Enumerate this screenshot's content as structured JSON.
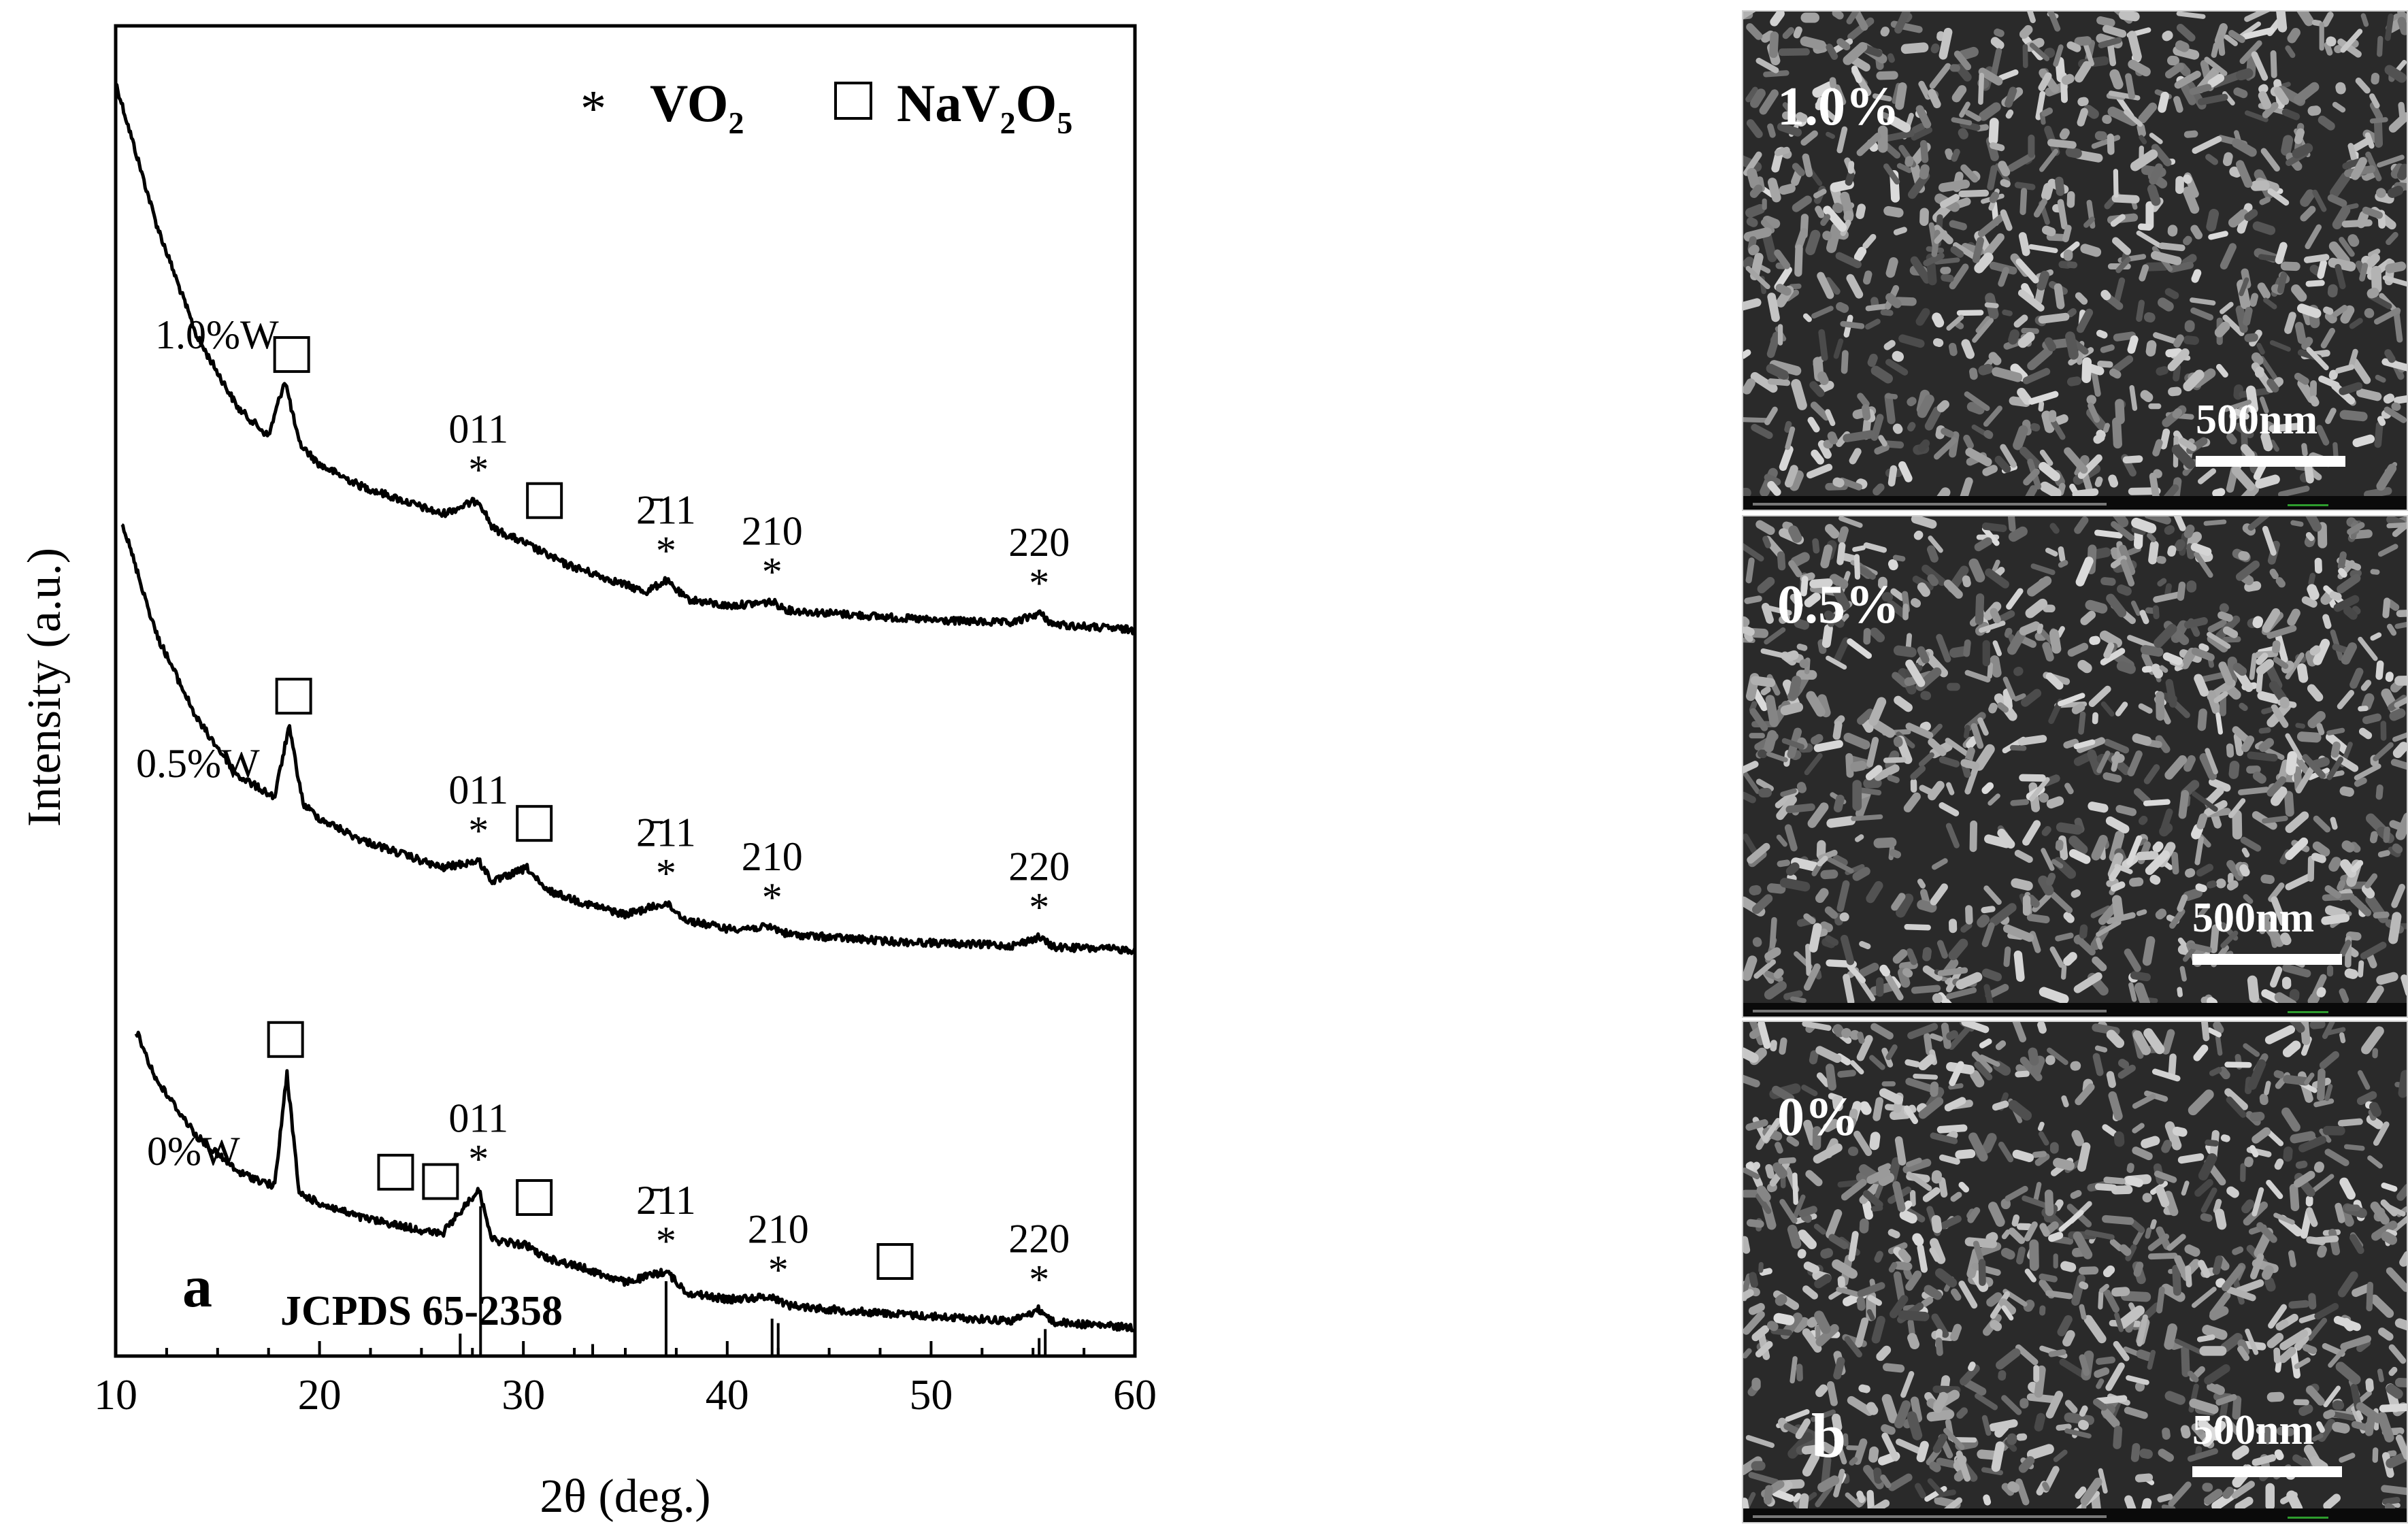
{
  "chart_data": {
    "type": "line",
    "panel_label": "a",
    "xlabel": "2θ (deg.)",
    "ylabel": "Intensity (a.u.)",
    "xlim": [
      10,
      60
    ],
    "xticks": [
      10,
      20,
      30,
      40,
      50,
      60
    ],
    "legend": [
      {
        "symbol": "*",
        "label": "VO",
        "sub": "2",
        "label2": "",
        "sub2": ""
      },
      {
        "symbol": "□",
        "label": "NaV",
        "sub": "2",
        "label2": "O",
        "sub2": "5"
      }
    ],
    "reference": {
      "label": "JCPDS 65-2358",
      "lines": [
        {
          "x": 26.9,
          "h": 0.15
        },
        {
          "x": 27.9,
          "h": 1.0
        },
        {
          "x": 33.4,
          "h": 0.08
        },
        {
          "x": 37.0,
          "h": 0.5
        },
        {
          "x": 42.2,
          "h": 0.25
        },
        {
          "x": 42.5,
          "h": 0.22
        },
        {
          "x": 55.3,
          "h": 0.12
        },
        {
          "x": 55.6,
          "h": 0.18
        }
      ]
    },
    "series": [
      {
        "name": "1.0%W",
        "x": [
          10,
          12,
          14,
          16,
          17.5,
          18.3,
          19,
          20,
          22,
          24,
          26,
          27.8,
          28.5,
          30,
          32,
          34,
          36,
          37,
          38,
          40,
          42.2,
          43,
          45,
          48,
          50,
          54,
          55.3,
          56,
          58,
          60
        ],
        "y": [
          9.0,
          8.0,
          7.2,
          6.7,
          6.5,
          6.9,
          6.45,
          6.3,
          6.15,
          6.05,
          5.95,
          6.05,
          5.85,
          5.75,
          5.6,
          5.5,
          5.4,
          5.48,
          5.35,
          5.3,
          5.33,
          5.27,
          5.25,
          5.22,
          5.2,
          5.18,
          5.25,
          5.17,
          5.15,
          5.13
        ],
        "peaks": [
          {
            "x": 18.6,
            "sym": "□",
            "hkl": ""
          },
          {
            "x": 27.8,
            "sym": "*",
            "hkl": "011"
          },
          {
            "x": 31.0,
            "sym": "□",
            "hkl": ""
          },
          {
            "x": 37.0,
            "sym": "*",
            "hkl": "2̄11"
          },
          {
            "x": 42.2,
            "sym": "*",
            "hkl": "210"
          },
          {
            "x": 55.3,
            "sym": "*",
            "hkl": "220"
          }
        ]
      },
      {
        "name": "0.5%W",
        "x": [
          10.3,
          12,
          14,
          16,
          17.8,
          18.5,
          19.2,
          20,
          22,
          24,
          26,
          27.8,
          28.5,
          30.2,
          31,
          33,
          35,
          37,
          38,
          40,
          42.2,
          43,
          45,
          48,
          50,
          54,
          55.3,
          56,
          58,
          60
        ],
        "y": [
          5.9,
          5.1,
          4.5,
          4.1,
          3.95,
          4.45,
          3.9,
          3.8,
          3.65,
          3.55,
          3.45,
          3.5,
          3.35,
          3.45,
          3.3,
          3.2,
          3.12,
          3.2,
          3.08,
          3.02,
          3.03,
          2.98,
          2.96,
          2.93,
          2.92,
          2.9,
          2.96,
          2.89,
          2.88,
          2.87
        ],
        "peaks": [
          {
            "x": 18.7,
            "sym": "□",
            "hkl": ""
          },
          {
            "x": 27.8,
            "sym": "*",
            "hkl": "011"
          },
          {
            "x": 30.5,
            "sym": "□",
            "hkl": ""
          },
          {
            "x": 37.0,
            "sym": "*",
            "hkl": "2̄11"
          },
          {
            "x": 42.2,
            "sym": "*",
            "hkl": "210"
          },
          {
            "x": 55.3,
            "sym": "*",
            "hkl": "220"
          }
        ]
      },
      {
        "name": "0%W",
        "x": [
          11,
          12,
          14,
          16,
          17.8,
          18.4,
          19,
          20,
          22,
          24,
          26,
          27.8,
          28.5,
          30.2,
          31,
          33,
          35,
          37,
          38,
          40,
          42.2,
          43,
          45,
          48,
          50,
          54,
          55.3,
          56,
          58,
          60
        ],
        "y": [
          2.3,
          1.95,
          1.55,
          1.3,
          1.2,
          2.0,
          1.15,
          1.08,
          0.98,
          0.92,
          0.86,
          1.18,
          0.82,
          0.78,
          0.7,
          0.62,
          0.52,
          0.6,
          0.45,
          0.4,
          0.42,
          0.36,
          0.33,
          0.3,
          0.28,
          0.25,
          0.33,
          0.24,
          0.22,
          0.2
        ],
        "peaks": [
          {
            "x": 18.3,
            "sym": "□",
            "hkl": ""
          },
          {
            "x": 23.7,
            "sym": "□",
            "hkl": ""
          },
          {
            "x": 25.9,
            "sym": "□",
            "hkl": ""
          },
          {
            "x": 27.8,
            "sym": "*",
            "hkl": "011"
          },
          {
            "x": 30.5,
            "sym": "□",
            "hkl": ""
          },
          {
            "x": 37.0,
            "sym": "*",
            "hkl": "2̄11"
          },
          {
            "x": 42.5,
            "sym": "*",
            "hkl": "210"
          },
          {
            "x": 48.2,
            "sym": "□",
            "hkl": ""
          },
          {
            "x": 55.3,
            "sym": "*",
            "hkl": "220"
          }
        ]
      }
    ]
  },
  "sem": {
    "panel_label": "b",
    "scale_label": "500nm",
    "panels": [
      {
        "label": "1.0%",
        "seed": 7
      },
      {
        "label": "0.5%",
        "seed": 19
      },
      {
        "label": "0%",
        "seed": 31
      }
    ]
  }
}
